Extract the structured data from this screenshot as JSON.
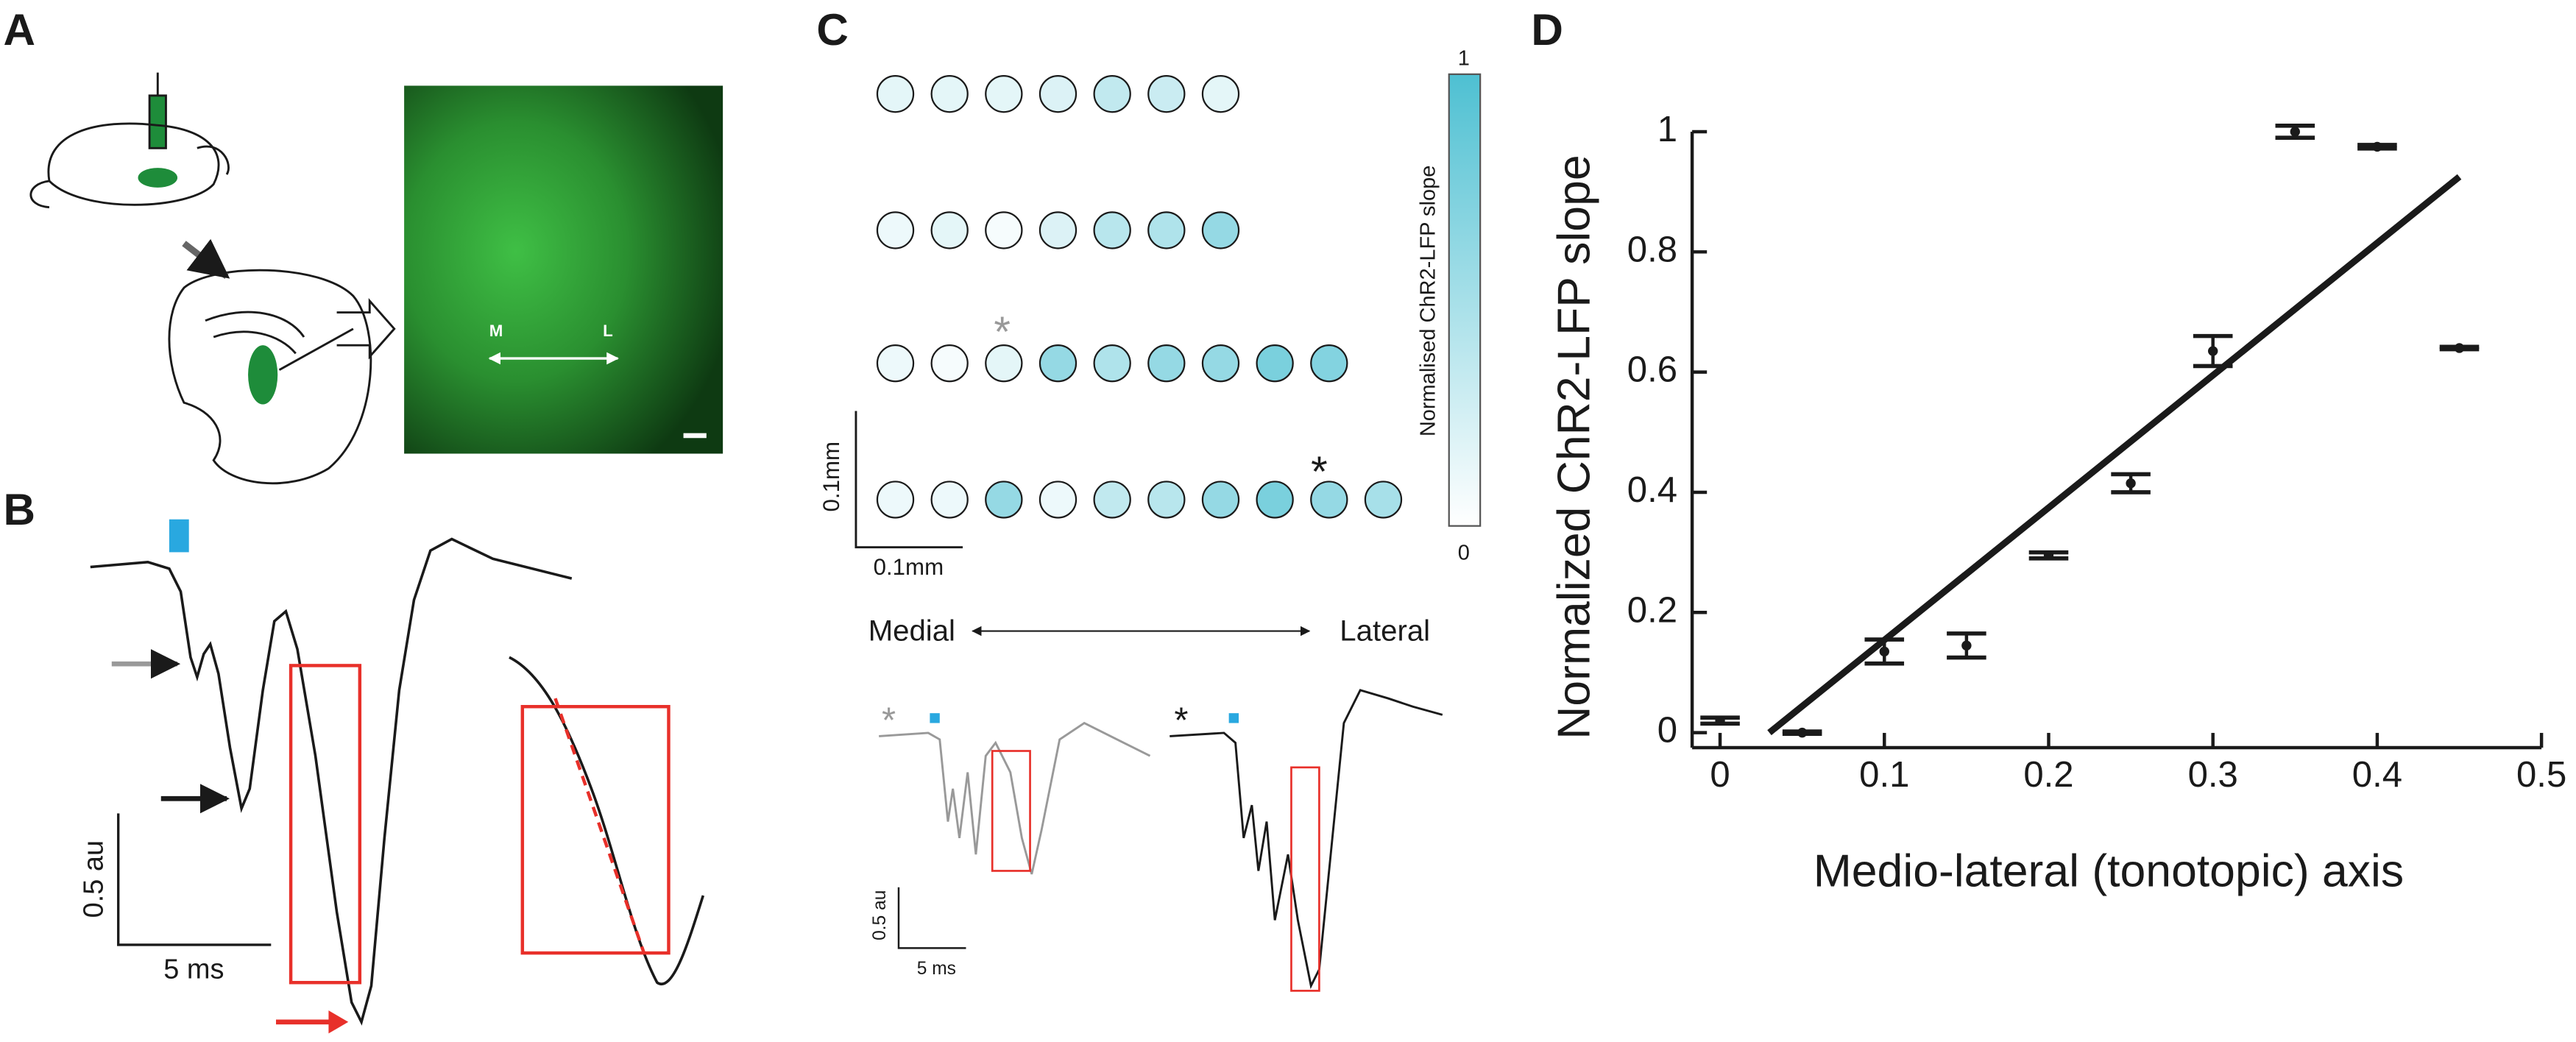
{
  "panel_labels": [
    "A",
    "B",
    "C",
    "D"
  ],
  "panel_a": {
    "medial": "M",
    "lateral": "L"
  },
  "panel_b": {
    "amplitude_scale": "0.5 au",
    "time_scale": "5 ms"
  },
  "panel_c": {
    "colorbar_label": "Normalised ChR2-LFP slope",
    "colorbar_range": [
      0,
      1
    ],
    "slopes": [
      [
        0.15,
        0.15,
        0.15,
        0.2,
        0.35,
        0.3,
        0.15
      ],
      [
        0.1,
        0.15,
        0.05,
        0.2,
        0.4,
        0.45,
        0.6
      ],
      [
        0.1,
        0.05,
        0.15,
        0.6,
        0.45,
        0.6,
        0.6,
        0.75,
        0.7
      ],
      [
        0.1,
        0.1,
        0.6,
        0.1,
        0.35,
        0.4,
        0.6,
        0.75,
        0.6,
        0.5
      ]
    ],
    "scale_vertical": "0.1mm",
    "scale_horizontal": "0.1mm",
    "medial": "Medial",
    "lateral": "Lateral",
    "marker_gray": "*",
    "marker_black": "*",
    "trace_marker_gray": "*",
    "trace_marker_black": "*",
    "amplitude_scale": "0.5 au",
    "time_scale": "5 ms"
  },
  "chart_data": {
    "type": "scatter",
    "xlabel": "Medio-lateral (tonotopic) axis",
    "ylabel": "Normalized ChR2-LFP slope",
    "x": [
      0,
      0.05,
      0.1,
      0.15,
      0.2,
      0.25,
      0.3,
      0.35,
      0.4,
      0.45
    ],
    "values": [
      0.02,
      0,
      0.135,
      0.145,
      0.295,
      0.415,
      0.635,
      1.0,
      0.975,
      0.64
    ],
    "errors": [
      0.005,
      0.002,
      0.02,
      0.02,
      0.005,
      0.015,
      0.025,
      0.01,
      0.003,
      0.002
    ],
    "fit": {
      "x": [
        0.03,
        0.45
      ],
      "values": [
        0,
        0.925
      ]
    },
    "color": "#1a1a1a",
    "xlim": [
      -0.017,
      0.5
    ],
    "ylim": [
      -0.025,
      1
    ],
    "xticks": [
      0,
      0.1,
      0.2,
      0.3,
      0.4,
      0.5
    ],
    "yticks": [
      0,
      0.2,
      0.4,
      0.6,
      0.8,
      1
    ]
  }
}
